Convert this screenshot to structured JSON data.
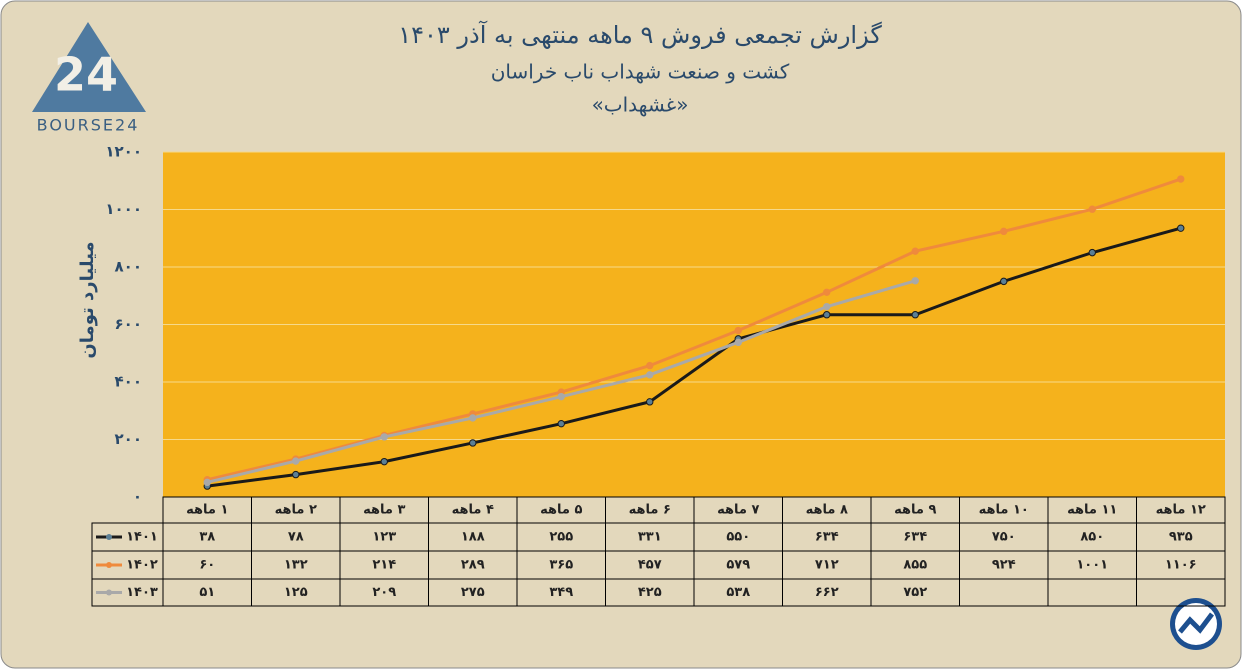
{
  "logo": {
    "mark": "24",
    "text": "BOURSE24"
  },
  "chart_data": {
    "type": "line",
    "title": "گزارش تجمعی فروش ۹ ماهه منتهی به آذر ۱۴۰۳",
    "subtitle": "کشت و صنعت شهداب ناب خراسان",
    "subtitle2": "«غشهداب»",
    "y_label": "میلیارد تومان",
    "categories": [
      "۱ ماهه",
      "۲ ماهه",
      "۳ ماهه",
      "۴ ماهه",
      "۵ ماهه",
      "۶ ماهه",
      "۷ ماهه",
      "۸ ماهه",
      "۹ ماهه",
      "۱۰ ماهه",
      "۱۱ ماهه",
      "۱۲ ماهه"
    ],
    "series": [
      {
        "name": "۱۴۰۱",
        "color": "#1a1a1a",
        "values": [
          38,
          78,
          123,
          188,
          255,
          331,
          550,
          634,
          634,
          750,
          850,
          935
        ],
        "value_labels": [
          "۳۸",
          "۷۸",
          "۱۲۳",
          "۱۸۸",
          "۲۵۵",
          "۳۳۱",
          "۵۵۰",
          "۶۳۴",
          "۶۳۴",
          "۷۵۰",
          "۸۵۰",
          "۹۳۵"
        ]
      },
      {
        "name": "۱۴۰۲",
        "color": "#ef8a3c",
        "values": [
          60,
          132,
          214,
          289,
          365,
          457,
          579,
          712,
          855,
          924,
          1001,
          1106
        ],
        "value_labels": [
          "۶۰",
          "۱۳۲",
          "۲۱۴",
          "۲۸۹",
          "۳۶۵",
          "۴۵۷",
          "۵۷۹",
          "۷۱۲",
          "۸۵۵",
          "۹۲۴",
          "۱۰۰۱",
          "۱۱۰۶"
        ]
      },
      {
        "name": "۱۴۰۳",
        "color": "#a9a9a9",
        "values": [
          51,
          125,
          209,
          275,
          349,
          425,
          538,
          662,
          752,
          null,
          null,
          null
        ],
        "value_labels": [
          "۵۱",
          "۱۲۵",
          "۲۰۹",
          "۲۷۵",
          "۳۴۹",
          "۴۲۵",
          "۵۳۸",
          "۶۶۲",
          "۷۵۲",
          null,
          null,
          null
        ]
      }
    ],
    "ylim": [
      0,
      1200
    ],
    "yticks": [
      {
        "value": 0,
        "label": "۰"
      },
      {
        "value": 200,
        "label": "۲۰۰"
      },
      {
        "value": 400,
        "label": "۴۰۰"
      },
      {
        "value": 600,
        "label": "۶۰۰"
      },
      {
        "value": 800,
        "label": "۸۰۰"
      },
      {
        "value": 1000,
        "label": "۱۰۰۰"
      },
      {
        "value": 1200,
        "label": "۱۲۰۰"
      }
    ],
    "grid": true
  }
}
